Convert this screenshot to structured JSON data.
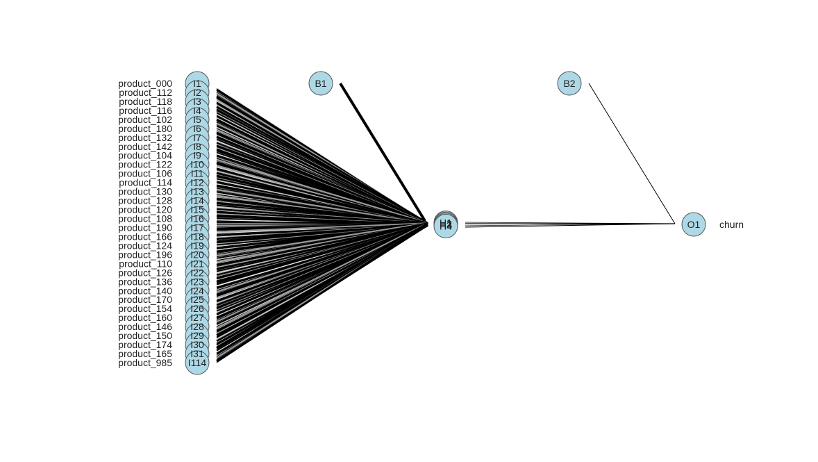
{
  "diagram": {
    "type": "neural-network-plot",
    "node_color": "#add8e6",
    "edge_color": "#000000",
    "input_labels": [
      "product_000",
      "product_112",
      "product_118",
      "product_116",
      "product_102",
      "product_180",
      "product_132",
      "product_142",
      "product_104",
      "product_122",
      "product_106",
      "product_114",
      "product_130",
      "product_128",
      "product_120",
      "product_108",
      "product_190",
      "product_166",
      "product_124",
      "product_196",
      "product_110",
      "product_126",
      "product_136",
      "product_140",
      "product_170",
      "product_154",
      "product_160",
      "product_146",
      "product_150",
      "product_174",
      "product_165",
      "product_985"
    ],
    "input_node_labels": [
      "I1",
      "I2",
      "I3",
      "I4",
      "I5",
      "I6",
      "I7",
      "I8",
      "I9",
      "I10",
      "I11",
      "I12",
      "I13",
      "I14",
      "I15",
      "I16",
      "I17",
      "I18",
      "I19",
      "I20",
      "I21",
      "I22",
      "I23",
      "I24",
      "I25",
      "I26",
      "I27",
      "I28",
      "I29",
      "I30",
      "I31",
      "I114"
    ],
    "hidden_nodes": [
      "H1",
      "H2",
      "H3",
      "H4"
    ],
    "bias_nodes": [
      "B1",
      "B2"
    ],
    "output_nodes": [
      "O1"
    ],
    "output_labels": [
      "churn"
    ]
  }
}
